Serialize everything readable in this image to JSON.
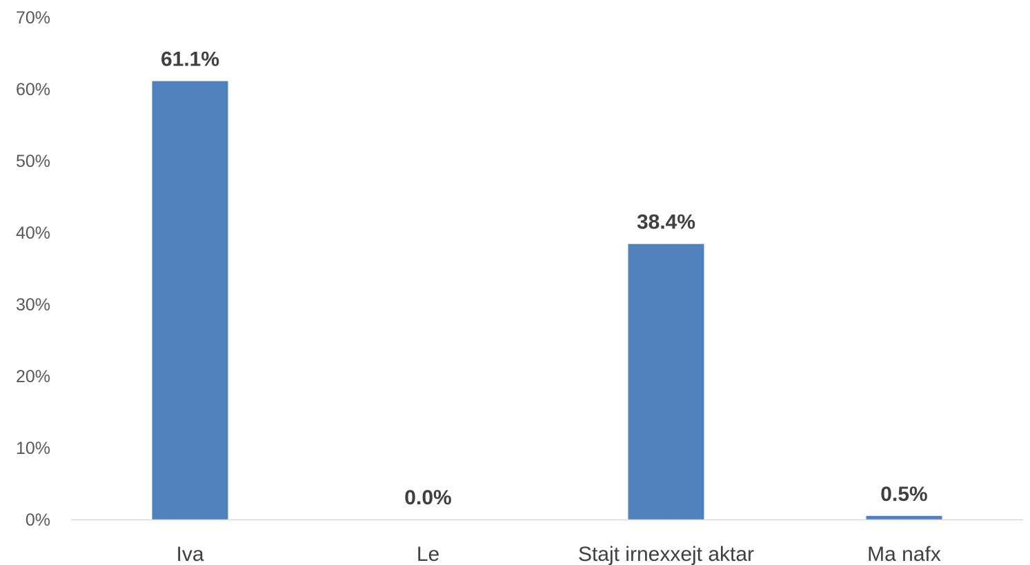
{
  "chart_data": {
    "type": "bar",
    "title": "",
    "xlabel": "",
    "ylabel": "",
    "categories": [
      "Iva",
      "Le",
      "Stajt irnexxejt aktar",
      "Ma nafx"
    ],
    "values": [
      61.1,
      0.0,
      38.4,
      0.5
    ],
    "data_labels": [
      "61.1%",
      "0.0%",
      "38.4%",
      "0.5%"
    ],
    "ylim": [
      0,
      70
    ],
    "yticks": [
      0,
      10,
      20,
      30,
      40,
      50,
      60,
      70
    ],
    "ytick_labels": [
      "0%",
      "10%",
      "20%",
      "30%",
      "40%",
      "50%",
      "60%",
      "70%"
    ],
    "grid": false,
    "legend": "none",
    "colors": {
      "bar": "#4f81bd",
      "axis": "#d9d9d9",
      "tick_text": "#595959",
      "label_text": "#404040"
    }
  }
}
